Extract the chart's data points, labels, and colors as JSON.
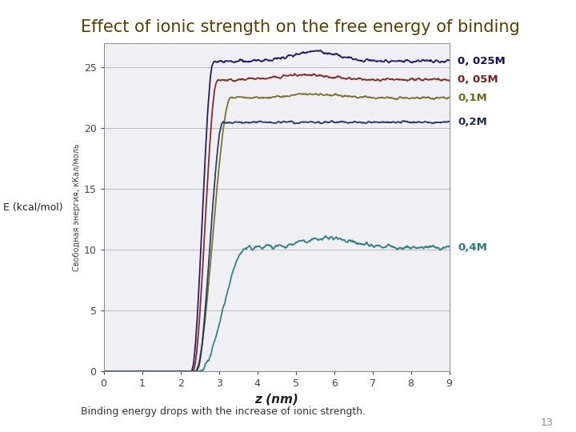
{
  "title": "Effect of ionic strength on the free energy of binding",
  "xlabel": "z (nm)",
  "ylabel_russian": "Свободная энергия, кКал/моль",
  "ylabel_english": "E (kcal/mol)",
  "xlim": [
    0,
    9
  ],
  "ylim": [
    0,
    27
  ],
  "yticks": [
    0,
    5,
    10,
    15,
    20,
    25
  ],
  "xticks": [
    0,
    1,
    2,
    3,
    4,
    5,
    6,
    7,
    8,
    9
  ],
  "subtitle": "Binding energy drops with the increase of ionic strength.",
  "background_color": "#ffffff",
  "plot_bg_color": "#f0f0f4",
  "series": [
    {
      "label": "0, 025M",
      "color": "#1a0a5e",
      "plateau": 25.5,
      "rise_start": 2.28,
      "rise_end": 2.85,
      "noise": 0.18,
      "peak_boost": 0.8,
      "peak_x": 5.5
    },
    {
      "label": "0, 05M",
      "color": "#7b1c1c",
      "plateau": 24.0,
      "rise_start": 2.32,
      "rise_end": 2.95,
      "noise": 0.15,
      "peak_boost": 0.4,
      "peak_x": 5.2
    },
    {
      "label": "0,1M",
      "color": "#6b6b1a",
      "plateau": 22.5,
      "rise_start": 2.38,
      "rise_end": 3.3,
      "noise": 0.14,
      "peak_boost": 0.3,
      "peak_x": 5.5
    },
    {
      "label": "0,2M",
      "color": "#1a2a5e",
      "plateau": 20.5,
      "rise_start": 2.42,
      "rise_end": 3.1,
      "noise": 0.12,
      "peak_boost": 0.0,
      "peak_x": 6.0
    },
    {
      "label": "0,4M",
      "color": "#267b7b",
      "plateau": 10.2,
      "rise_start": 2.5,
      "rise_end": 3.7,
      "noise": 0.22,
      "peak_boost": 0.8,
      "peak_x": 5.8
    }
  ],
  "legend_items": [
    {
      "label": "0, 025M",
      "color": "#1a0a5e"
    },
    {
      "label": "0, 05M",
      "color": "#7b1c1c"
    },
    {
      "label": "0,1M",
      "color": "#6b6b1a"
    },
    {
      "label": "0,2M",
      "color": "#1a2a5e"
    },
    {
      "label": "0,4M",
      "color": "#267b7b"
    }
  ],
  "page_number": "13",
  "title_color": "#5a3e00",
  "title_fontsize": 15
}
